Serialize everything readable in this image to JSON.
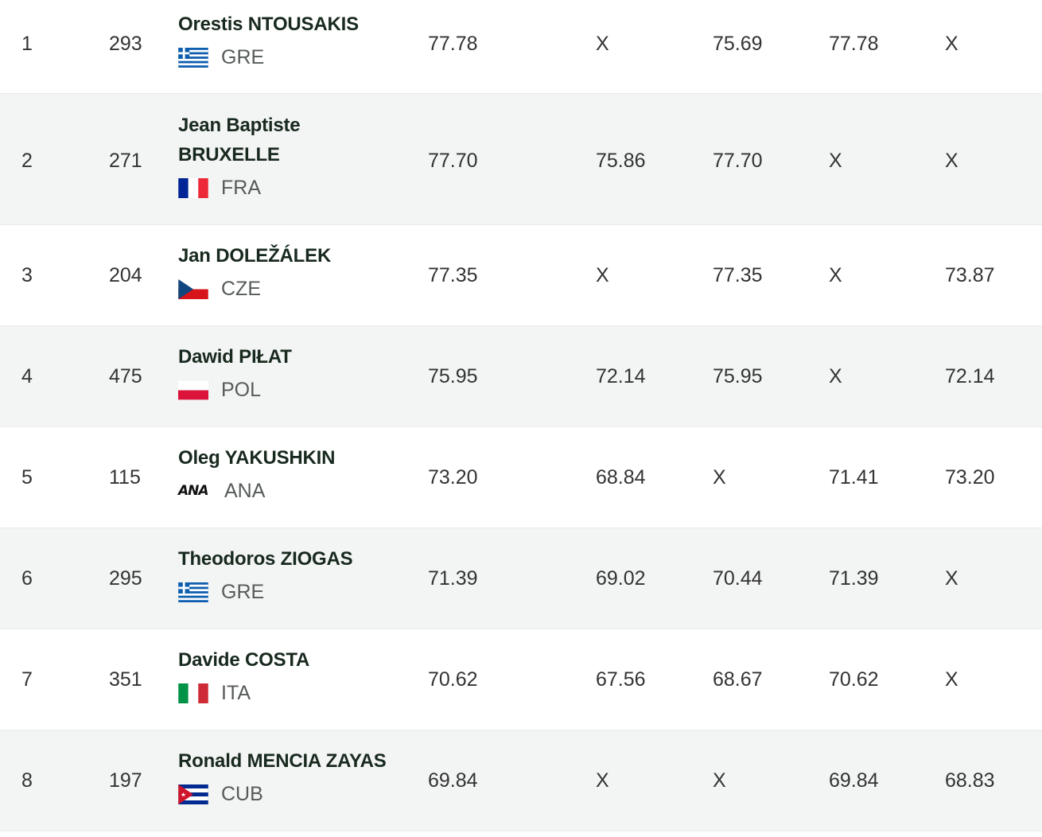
{
  "results": [
    {
      "rank": "1",
      "bib": "293",
      "name": "Orestis NTOUSAKIS",
      "country": "GRE",
      "flag_icon": "greece-flag-icon",
      "best": "77.78",
      "attempts": [
        "X",
        "75.69",
        "77.78",
        "X"
      ]
    },
    {
      "rank": "2",
      "bib": "271",
      "name_lines": [
        "Jean Baptiste",
        "BRUXELLE"
      ],
      "country": "FRA",
      "flag_icon": "france-flag-icon",
      "best": "77.70",
      "attempts": [
        "75.86",
        "77.70",
        "X",
        "X"
      ]
    },
    {
      "rank": "3",
      "bib": "204",
      "name": "Jan DOLEŽÁLEK",
      "country": "CZE",
      "flag_icon": "czech-flag-icon",
      "best": "77.35",
      "attempts": [
        "X",
        "77.35",
        "X",
        "73.87"
      ]
    },
    {
      "rank": "4",
      "bib": "475",
      "name": "Dawid PIŁAT",
      "country": "POL",
      "flag_icon": "poland-flag-icon",
      "best": "75.95",
      "attempts": [
        "72.14",
        "75.95",
        "X",
        "72.14"
      ]
    },
    {
      "rank": "5",
      "bib": "115",
      "name": "Oleg YAKUSHKIN",
      "country": "ANA",
      "flag_icon": "ana-logo-icon",
      "ana_logo_text": "ANA",
      "best": "73.20",
      "attempts": [
        "68.84",
        "X",
        "71.41",
        "73.20"
      ]
    },
    {
      "rank": "6",
      "bib": "295",
      "name": "Theodoros ZIOGAS",
      "country": "GRE",
      "flag_icon": "greece-flag-icon",
      "best": "71.39",
      "attempts": [
        "69.02",
        "70.44",
        "71.39",
        "X"
      ]
    },
    {
      "rank": "7",
      "bib": "351",
      "name": "Davide COSTA",
      "country": "ITA",
      "flag_icon": "italy-flag-icon",
      "best": "70.62",
      "attempts": [
        "67.56",
        "68.67",
        "70.62",
        "X"
      ]
    },
    {
      "rank": "8",
      "bib": "197",
      "name": "Ronald MENCIA ZAYAS",
      "country": "CUB",
      "flag_icon": "cuba-flag-icon",
      "best": "69.84",
      "attempts": [
        "X",
        "X",
        "69.84",
        "68.83"
      ]
    }
  ],
  "colors": {
    "row_alt_bg": "#f3f4f4",
    "name_text": "#18291e",
    "value_text": "#333333",
    "country_text": "#555b58"
  }
}
